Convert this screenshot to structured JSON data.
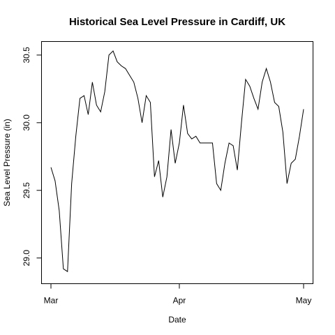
{
  "chart_data": {
    "type": "line",
    "title": "Historical Sea Level Pressure in Cardiff, UK",
    "xlabel": "Date",
    "ylabel": "Sea Level Pressure (in)",
    "x_range": [
      "2014-03-01",
      "2014-05-01"
    ],
    "ylim": [
      28.81,
      30.6
    ],
    "x_ticks": [
      {
        "label": "Mar",
        "date": "2014-03-01"
      },
      {
        "label": "Apr",
        "date": "2014-04-01"
      },
      {
        "label": "May",
        "date": "2014-05-01"
      }
    ],
    "y_ticks": [
      {
        "label": "29.0",
        "value": 29.0
      },
      {
        "label": "29.5",
        "value": 29.5
      },
      {
        "label": "30.0",
        "value": 30.0
      },
      {
        "label": "30.5",
        "value": 30.5
      }
    ],
    "grid": false,
    "line_color": "#000000",
    "x": [
      "2014-03-01",
      "2014-03-02",
      "2014-03-03",
      "2014-03-04",
      "2014-03-05",
      "2014-03-06",
      "2014-03-07",
      "2014-03-08",
      "2014-03-09",
      "2014-03-10",
      "2014-03-11",
      "2014-03-12",
      "2014-03-13",
      "2014-03-14",
      "2014-03-15",
      "2014-03-16",
      "2014-03-17",
      "2014-03-18",
      "2014-03-19",
      "2014-03-20",
      "2014-03-21",
      "2014-03-22",
      "2014-03-23",
      "2014-03-24",
      "2014-03-25",
      "2014-03-26",
      "2014-03-27",
      "2014-03-28",
      "2014-03-29",
      "2014-03-30",
      "2014-03-31",
      "2014-04-01",
      "2014-04-02",
      "2014-04-03",
      "2014-04-04",
      "2014-04-05",
      "2014-04-06",
      "2014-04-07",
      "2014-04-08",
      "2014-04-09",
      "2014-04-10",
      "2014-04-11",
      "2014-04-12",
      "2014-04-13",
      "2014-04-14",
      "2014-04-15",
      "2014-04-16",
      "2014-04-17",
      "2014-04-18",
      "2014-04-19",
      "2014-04-20",
      "2014-04-21",
      "2014-04-22",
      "2014-04-23",
      "2014-04-24",
      "2014-04-25",
      "2014-04-26",
      "2014-04-27",
      "2014-04-28",
      "2014-04-29",
      "2014-04-30",
      "2014-05-01"
    ],
    "y": [
      29.67,
      29.57,
      29.35,
      28.92,
      28.9,
      29.55,
      29.9,
      30.18,
      30.2,
      30.06,
      30.3,
      30.13,
      30.08,
      30.23,
      30.5,
      30.53,
      30.45,
      30.42,
      30.4,
      30.35,
      30.3,
      30.18,
      30.0,
      30.2,
      30.15,
      29.6,
      29.72,
      29.45,
      29.6,
      29.95,
      29.7,
      29.85,
      30.13,
      29.92,
      29.88,
      29.9,
      29.85,
      29.85,
      29.85,
      29.85,
      29.55,
      29.5,
      29.7,
      29.85,
      29.83,
      29.65,
      30.0,
      30.32,
      30.27,
      30.18,
      30.1,
      30.3,
      30.4,
      30.3,
      30.15,
      30.12,
      29.93,
      29.55,
      29.7,
      29.73,
      29.9,
      30.1
    ]
  }
}
